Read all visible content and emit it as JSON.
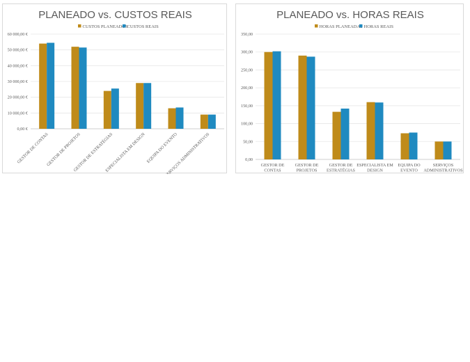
{
  "colors": {
    "planned": "#bf8b1a",
    "real": "#1f8ac0",
    "grid": "#e6e6e6",
    "axis": "#bfbfbf"
  },
  "chart_data": [
    {
      "type": "bar",
      "title": "PLANEADO vs. CUSTOS REAIS",
      "categories": [
        "GESTOR DE CONTAS",
        "GESTOR DE PROJETOS",
        "GESTOR DE ESTRATÉGIAS",
        "ESPECIALISTA EM DESIGN",
        "EQUIPA DO EVENTO",
        "SERVIÇOS ADMINISTRATIVOS"
      ],
      "series": [
        {
          "name": "CUSTOS PLANEADOS",
          "values": [
            54000,
            52000,
            24000,
            29000,
            13000,
            9000
          ]
        },
        {
          "name": "CUSTOS REAIS",
          "values": [
            54500,
            51500,
            25500,
            29000,
            13500,
            9000
          ]
        }
      ],
      "yticks": [
        "0,00 €",
        "10 000,00 €",
        "20 000,00 €",
        "30 000,00 €",
        "40 000,00 €",
        "50 000,00 €",
        "60 000,00 €"
      ],
      "ylim": [
        0,
        60000
      ],
      "legend": "top-center",
      "grid": true,
      "category_labels_rotated": true
    },
    {
      "type": "bar",
      "title": "PLANEADO vs. HORAS REAIS",
      "categories": [
        "GESTOR DE CONTAS",
        "GESTOR DE PROJETOS",
        "GESTOR DE ESTRATÉGIAS",
        "ESPECIALISTA EM DESIGN",
        "EQUIPA DO EVENTO",
        "SERVIÇOS ADMINISTRATIVOS"
      ],
      "series": [
        {
          "name": "HORAS PLANEADAS",
          "values": [
            300,
            290,
            133,
            160,
            73,
            50
          ]
        },
        {
          "name": "HORAS REAIS",
          "values": [
            302,
            287,
            142,
            159,
            75,
            50
          ]
        }
      ],
      "yticks": [
        "0,00",
        "50,00",
        "100,00",
        "150,00",
        "200,00",
        "250,00",
        "300,00",
        "350,00"
      ],
      "ylim": [
        0,
        350
      ],
      "legend": "top-center",
      "grid": true,
      "category_labels_rotated": false
    }
  ]
}
